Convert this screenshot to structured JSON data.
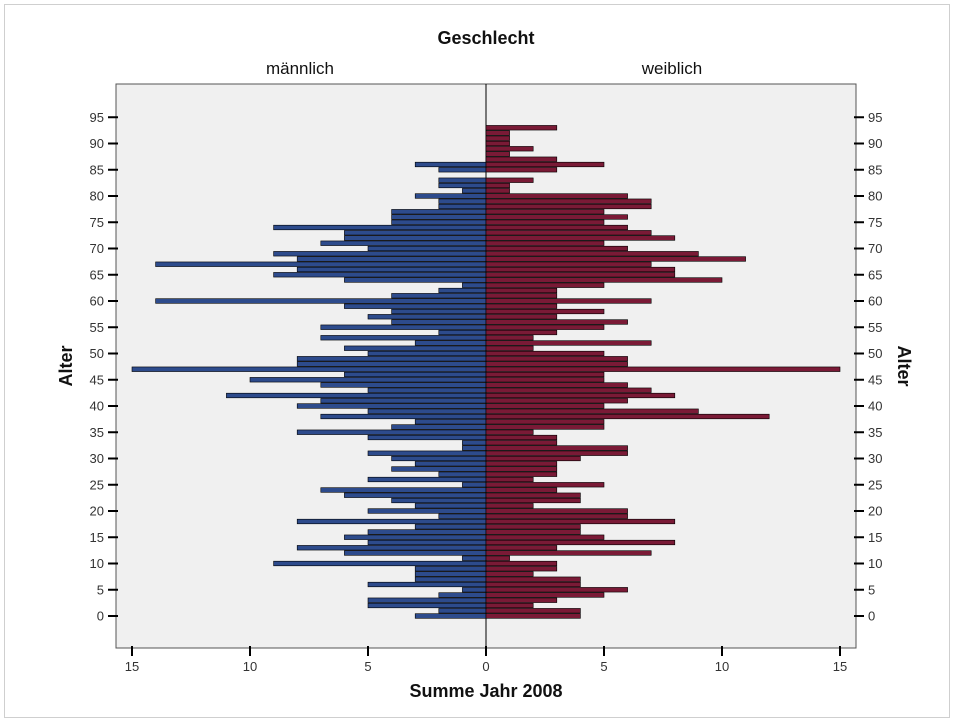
{
  "chart_data": {
    "type": "bar",
    "orientation": "horizontal",
    "subtype": "population-pyramid",
    "title": "Geschlecht",
    "xlabel": "Summe Jahr 2008",
    "ylabel": "Alter",
    "ylabel_right": "Alter",
    "xlim": [
      0,
      15
    ],
    "ylim": [
      -8,
      99
    ],
    "x_ticks": [
      "15",
      "10",
      "5",
      "0",
      "5",
      "10",
      "15"
    ],
    "x_tick_values": [
      15,
      10,
      5,
      0,
      5,
      10,
      15
    ],
    "y_ticks": [
      "95",
      "90",
      "85",
      "80",
      "75",
      "70",
      "65",
      "60",
      "55",
      "50",
      "45",
      "40",
      "35",
      "30",
      "25",
      "20",
      "15",
      "10",
      "5",
      "0"
    ],
    "y_tick_values": [
      95,
      90,
      85,
      80,
      75,
      70,
      65,
      60,
      55,
      50,
      45,
      40,
      35,
      30,
      25,
      20,
      15,
      10,
      5,
      0
    ],
    "grid": false,
    "legend": "none",
    "series": [
      {
        "name": "männlich",
        "color": "#2d4b8c",
        "ages": [
          0,
          1,
          2,
          3,
          4,
          5,
          6,
          7,
          8,
          9,
          10,
          11,
          12,
          13,
          14,
          15,
          16,
          17,
          18,
          19,
          20,
          21,
          22,
          23,
          24,
          25,
          26,
          27,
          28,
          29,
          30,
          31,
          32,
          33,
          34,
          35,
          36,
          37,
          38,
          39,
          40,
          41,
          42,
          43,
          44,
          45,
          46,
          47,
          48,
          49,
          50,
          51,
          52,
          53,
          54,
          55,
          56,
          57,
          58,
          59,
          60,
          61,
          62,
          63,
          64,
          65,
          66,
          67,
          68,
          69,
          70,
          71,
          72,
          73,
          74,
          75,
          76,
          77,
          78,
          79,
          80,
          81,
          82,
          83,
          84,
          85,
          86,
          87,
          88,
          89,
          90,
          91,
          92,
          93
        ],
        "values": [
          3,
          2,
          5,
          5,
          2,
          1,
          5,
          3,
          3,
          3,
          9,
          1,
          6,
          8,
          5,
          6,
          5,
          3,
          8,
          2,
          5,
          3,
          4,
          6,
          7,
          1,
          5,
          2,
          4,
          3,
          4,
          5,
          1,
          1,
          5,
          8,
          4,
          3,
          7,
          5,
          8,
          7,
          11,
          5,
          7,
          10,
          6,
          15,
          8,
          8,
          5,
          6,
          3,
          7,
          2,
          7,
          4,
          5,
          4,
          6,
          14,
          4,
          2,
          1,
          6,
          9,
          8,
          14,
          8,
          9,
          5,
          7,
          6,
          6,
          9,
          4,
          4,
          4,
          2,
          2,
          3,
          1,
          2,
          2,
          0,
          2,
          3,
          0,
          0,
          0,
          0,
          0,
          0,
          0
        ]
      },
      {
        "name": "weiblich",
        "color": "#7a1a36",
        "ages": [
          0,
          1,
          2,
          3,
          4,
          5,
          6,
          7,
          8,
          9,
          10,
          11,
          12,
          13,
          14,
          15,
          16,
          17,
          18,
          19,
          20,
          21,
          22,
          23,
          24,
          25,
          26,
          27,
          28,
          29,
          30,
          31,
          32,
          33,
          34,
          35,
          36,
          37,
          38,
          39,
          40,
          41,
          42,
          43,
          44,
          45,
          46,
          47,
          48,
          49,
          50,
          51,
          52,
          53,
          54,
          55,
          56,
          57,
          58,
          59,
          60,
          61,
          62,
          63,
          64,
          65,
          66,
          67,
          68,
          69,
          70,
          71,
          72,
          73,
          74,
          75,
          76,
          77,
          78,
          79,
          80,
          81,
          82,
          83,
          84,
          85,
          86,
          87,
          88,
          89,
          90,
          91,
          92,
          93
        ],
        "values": [
          4,
          4,
          2,
          3,
          5,
          6,
          4,
          4,
          2,
          3,
          3,
          1,
          7,
          3,
          8,
          5,
          4,
          4,
          8,
          6,
          6,
          2,
          4,
          4,
          3,
          5,
          2,
          3,
          3,
          3,
          4,
          6,
          6,
          3,
          3,
          2,
          5,
          5,
          12,
          9,
          5,
          6,
          8,
          7,
          6,
          5,
          5,
          15,
          6,
          6,
          5,
          2,
          7,
          2,
          3,
          5,
          6,
          3,
          5,
          3,
          7,
          3,
          3,
          5,
          10,
          8,
          8,
          7,
          11,
          9,
          6,
          5,
          8,
          7,
          6,
          5,
          6,
          5,
          7,
          7,
          6,
          1,
          1,
          2,
          0,
          3,
          5,
          3,
          1,
          2,
          1,
          1,
          1,
          3
        ]
      }
    ]
  }
}
